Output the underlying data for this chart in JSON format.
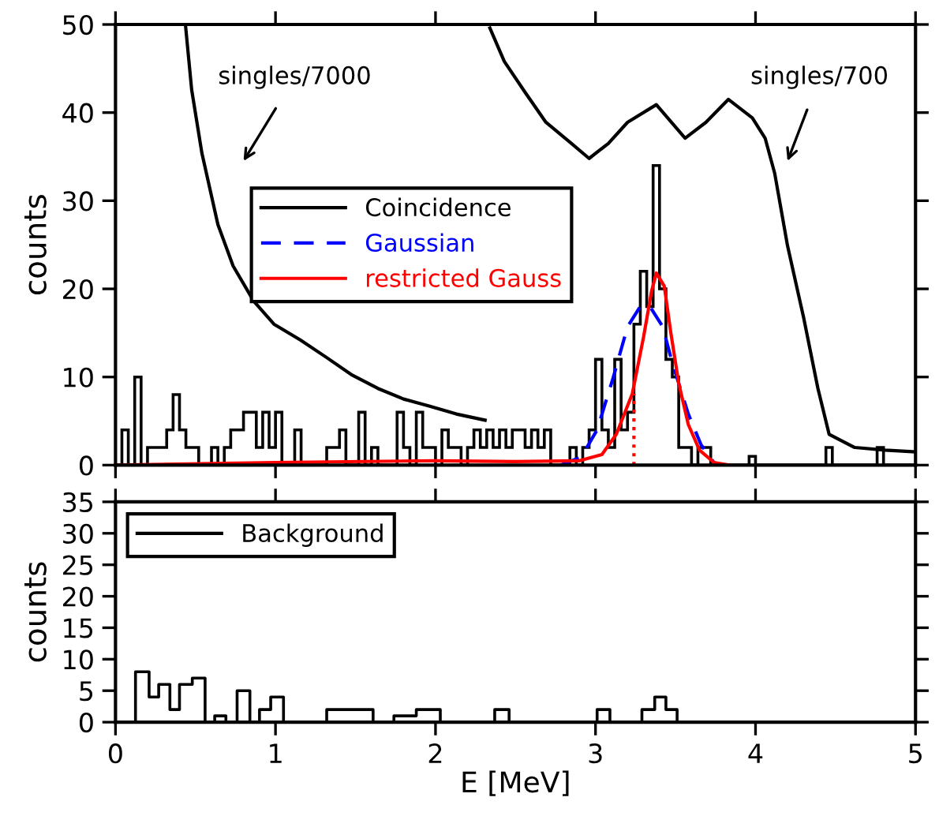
{
  "chart_data": [
    {
      "type": "line",
      "ylabel": "counts",
      "xlim": [
        0,
        5
      ],
      "ylim": [
        0,
        50
      ],
      "xticks": [
        0,
        1,
        2,
        3,
        4,
        5
      ],
      "yticks": [
        0,
        10,
        20,
        30,
        40,
        50
      ],
      "tick_labels": "y",
      "legend": "center",
      "series": [
        {
          "type": "histogram",
          "name": "Coincidence",
          "color": "#000000",
          "bins": [
            0,
            0.04,
            0.08,
            0.12,
            0.16,
            0.2,
            0.24,
            0.28,
            0.32,
            0.36,
            0.4,
            0.44,
            0.48,
            0.52,
            0.56,
            0.6,
            0.64,
            0.68,
            0.72,
            0.76,
            0.8,
            0.84,
            0.88,
            0.92,
            0.96,
            1,
            1.04,
            1.08,
            1.12,
            1.16,
            1.2,
            1.24,
            1.28,
            1.32,
            1.36,
            1.4,
            1.44,
            1.48,
            1.52,
            1.56,
            1.6,
            1.64,
            1.68,
            1.72,
            1.76,
            1.8,
            1.84,
            1.88,
            1.92,
            1.96,
            2,
            2.04,
            2.08,
            2.12,
            2.16,
            2.2,
            2.24,
            2.28,
            2.32,
            2.36,
            2.4,
            2.44,
            2.48,
            2.52,
            2.56,
            2.6,
            2.64,
            2.68,
            2.72,
            2.76,
            2.8,
            2.84,
            2.88,
            2.92,
            2.96,
            3,
            3.04,
            3.08,
            3.12,
            3.16,
            3.2,
            3.24,
            3.28,
            3.32,
            3.36,
            3.4,
            3.44,
            3.48,
            3.52,
            3.56,
            3.6,
            3.64,
            3.68,
            3.72,
            3.76,
            3.8,
            3.84,
            3.88,
            3.92,
            3.96,
            4,
            4.04,
            4.08,
            4.12,
            4.16,
            4.2,
            4.24,
            4.28,
            4.32,
            4.36,
            4.4,
            4.44,
            4.48,
            4.52,
            4.56,
            4.6,
            4.64,
            4.68,
            4.72,
            4.76,
            4.8,
            4.84,
            4.88,
            4.92,
            4.96,
            5
          ],
          "values": [
            0,
            4,
            0,
            10,
            0,
            2,
            2,
            2,
            4,
            8,
            4,
            2,
            2,
            0,
            0,
            2,
            0,
            2,
            4,
            4,
            6,
            6,
            2,
            6,
            2,
            6,
            0,
            0,
            4,
            0,
            0,
            0,
            0,
            2,
            2,
            4,
            0,
            0,
            6,
            0,
            2,
            0,
            0,
            0,
            6,
            2,
            0,
            6,
            2,
            2,
            0,
            4,
            2,
            2,
            0,
            2,
            4,
            2,
            4,
            2,
            4,
            2,
            4,
            4,
            2,
            4,
            2,
            4,
            0,
            0,
            0,
            2,
            0,
            2,
            4,
            12,
            4,
            2,
            12,
            4,
            6,
            16,
            22,
            18,
            34,
            20,
            12,
            10,
            2,
            2,
            0,
            2,
            2,
            0,
            0,
            0,
            0,
            0,
            0,
            1,
            0,
            0,
            0,
            0,
            0,
            0,
            0,
            0,
            0,
            0,
            0,
            2,
            0,
            0,
            0,
            0,
            0,
            0,
            0,
            2,
            0,
            0,
            0,
            0,
            0
          ]
        },
        {
          "name": "Gaussian",
          "color": "#0000ff",
          "line_style": "dashed",
          "x": [
            2.78,
            2.91,
            3.01,
            3.11,
            3.2,
            3.28,
            3.34,
            3.42,
            3.48,
            3.58,
            3.66,
            3.74
          ],
          "values": [
            0,
            0.9,
            4,
            9.9,
            15.7,
            18,
            18,
            15.7,
            11.6,
            5.8,
            2.3,
            0.3
          ]
        },
        {
          "name": "restricted Gauss",
          "color": "#ff0000",
          "line_style": "solid",
          "x": [
            0,
            1,
            2,
            2.5,
            2.9,
            3.04,
            3.13,
            3.23,
            3.3,
            3.35,
            3.38,
            3.43,
            3.47,
            3.52,
            3.58,
            3.65,
            3.74,
            3.84
          ],
          "values": [
            0,
            0.3,
            0.5,
            0.4,
            0.5,
            1.2,
            3.5,
            8.1,
            14.5,
            19.7,
            21.8,
            20.3,
            15.1,
            9.3,
            4.6,
            1.7,
            0.3,
            0
          ]
        },
        {
          "color": "#ff0000",
          "line_style": "dotted",
          "x": [
            3.24,
            3.24
          ],
          "values": [
            0,
            8.1
          ]
        },
        {
          "color": "#000000",
          "line_style": "solid",
          "x": [
            0.437,
            0.476,
            0.54,
            0.64,
            0.735,
            0.864,
            0.99,
            1.155,
            1.32,
            1.48,
            1.64,
            1.8,
            1.96,
            2.13,
            2.31
          ],
          "values": [
            50,
            42.6,
            35.4,
            27.3,
            22.6,
            18.6,
            16,
            14.2,
            12.2,
            10.2,
            8.7,
            7.5,
            6.7,
            5.8,
            5.1
          ]
        },
        {
          "color": "#000000",
          "line_style": "solid",
          "x": [
            2.34,
            2.43,
            2.56,
            2.69,
            2.85,
            2.96,
            3.08,
            3.2,
            3.38,
            3.56,
            3.69,
            3.83,
            3.98,
            4.06,
            4.12,
            4.2,
            4.3,
            4.39,
            4.46,
            4.62,
            4.81,
            5
          ],
          "values": [
            49.6,
            45.8,
            42.3,
            38.9,
            36.5,
            34.8,
            36.5,
            38.9,
            40.9,
            37.1,
            38.9,
            41.5,
            39.4,
            37.1,
            33.1,
            24.9,
            16.8,
            8.7,
            3.5,
            2,
            1.7,
            1.5
          ]
        }
      ],
      "annotations": [
        "singles/7000",
        "singles/700"
      ]
    },
    {
      "type": "step",
      "xlabel": "E [MeV]",
      "ylabel": "counts",
      "xlim": [
        0,
        5
      ],
      "ylim": [
        0,
        35
      ],
      "xticks": [
        0,
        1,
        2,
        3,
        4,
        5
      ],
      "yticks": [
        0,
        5,
        10,
        15,
        20,
        25,
        30,
        35
      ],
      "legend": "top left",
      "series": [
        {
          "name": "Background",
          "color": "#000000",
          "x": [
            0,
            0.125,
            0.21,
            0.27,
            0.34,
            0.4,
            0.48,
            0.56,
            0.62,
            0.69,
            0.76,
            0.84,
            0.9,
            0.97,
            1.05,
            1.32,
            1.61,
            1.74,
            1.88,
            2.03,
            2.37,
            2.46,
            3.01,
            3.09,
            3.29,
            3.37,
            3.44,
            3.51,
            5
          ],
          "values": [
            0,
            8,
            4,
            6,
            2,
            6,
            7,
            0,
            1,
            0,
            5,
            0,
            2,
            4,
            0,
            2,
            0,
            1,
            2,
            0,
            2,
            0,
            2,
            0,
            2,
            4,
            2,
            0,
            0
          ]
        }
      ]
    }
  ]
}
